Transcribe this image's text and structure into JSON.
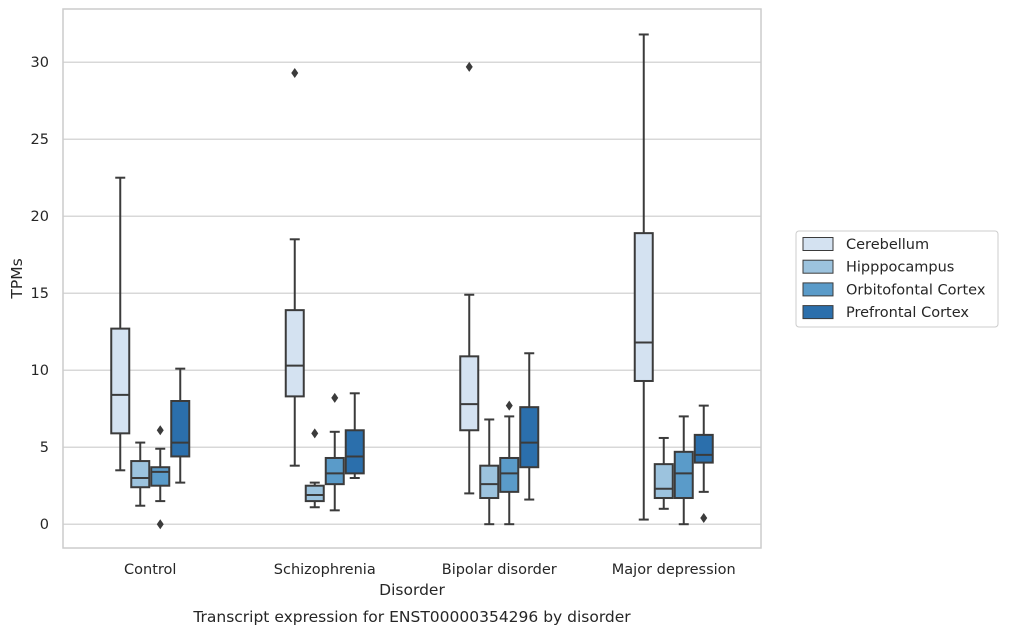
{
  "chart_data": {
    "type": "box",
    "ylabel": "TPMs",
    "xlabel": "Disorder",
    "caption": "Transcript expression for ENST00000354296 by disorder",
    "ylim": [
      -1.5,
      33.0
    ],
    "yticks": [
      0,
      5,
      10,
      15,
      20,
      25,
      30
    ],
    "grid": "horizontal",
    "legend_position": "right",
    "categories": [
      "Control",
      "Schizophrenia",
      "Bipolar disorder",
      "Major depression"
    ],
    "series": [
      {
        "name": "Cerebellum",
        "color": "#d4e2f1",
        "boxes": [
          {
            "whisker_low": 3.5,
            "q1": 5.9,
            "median": 8.4,
            "q3": 12.7,
            "whisker_high": 22.5,
            "outliers": []
          },
          {
            "whisker_low": 3.8,
            "q1": 8.3,
            "median": 10.3,
            "q3": 13.9,
            "whisker_high": 18.5,
            "outliers": [
              29.3
            ]
          },
          {
            "whisker_low": 2.0,
            "q1": 6.1,
            "median": 7.8,
            "q3": 10.9,
            "whisker_high": 14.9,
            "outliers": [
              29.7
            ]
          },
          {
            "whisker_low": 0.3,
            "q1": 9.3,
            "median": 11.8,
            "q3": 18.9,
            "whisker_high": 31.8,
            "outliers": []
          }
        ]
      },
      {
        "name": "Hipppocampus",
        "color": "#9cc3de",
        "boxes": [
          {
            "whisker_low": 1.2,
            "q1": 2.4,
            "median": 3.0,
            "q3": 4.1,
            "whisker_high": 5.3,
            "outliers": []
          },
          {
            "whisker_low": 1.1,
            "q1": 1.5,
            "median": 1.9,
            "q3": 2.5,
            "whisker_high": 2.7,
            "outliers": [
              5.9
            ]
          },
          {
            "whisker_low": 0.0,
            "q1": 1.7,
            "median": 2.6,
            "q3": 3.8,
            "whisker_high": 6.8,
            "outliers": []
          },
          {
            "whisker_low": 1.0,
            "q1": 1.7,
            "median": 2.3,
            "q3": 3.9,
            "whisker_high": 5.6,
            "outliers": []
          }
        ]
      },
      {
        "name": "Orbitofontal Cortex",
        "color": "#5a9bc9",
        "boxes": [
          {
            "whisker_low": 1.5,
            "q1": 2.5,
            "median": 3.4,
            "q3": 3.7,
            "whisker_high": 4.9,
            "outliers": [
              6.1,
              0.0
            ]
          },
          {
            "whisker_low": 0.9,
            "q1": 2.6,
            "median": 3.3,
            "q3": 4.3,
            "whisker_high": 6.0,
            "outliers": [
              8.2
            ]
          },
          {
            "whisker_low": 0.0,
            "q1": 2.1,
            "median": 3.3,
            "q3": 4.3,
            "whisker_high": 7.0,
            "outliers": [
              7.7
            ]
          },
          {
            "whisker_low": 0.0,
            "q1": 1.7,
            "median": 3.3,
            "q3": 4.7,
            "whisker_high": 7.0,
            "outliers": []
          }
        ]
      },
      {
        "name": "Prefrontal Cortex",
        "color": "#2b6fac",
        "boxes": [
          {
            "whisker_low": 2.7,
            "q1": 4.4,
            "median": 5.3,
            "q3": 8.0,
            "whisker_high": 10.1,
            "outliers": []
          },
          {
            "whisker_low": 3.0,
            "q1": 3.3,
            "median": 4.4,
            "q3": 6.1,
            "whisker_high": 8.5,
            "outliers": []
          },
          {
            "whisker_low": 1.6,
            "q1": 3.7,
            "median": 5.3,
            "q3": 7.6,
            "whisker_high": 11.1,
            "outliers": []
          },
          {
            "whisker_low": 2.1,
            "q1": 4.0,
            "median": 4.5,
            "q3": 5.8,
            "whisker_high": 7.7,
            "outliers": [
              0.4
            ]
          }
        ]
      }
    ]
  }
}
